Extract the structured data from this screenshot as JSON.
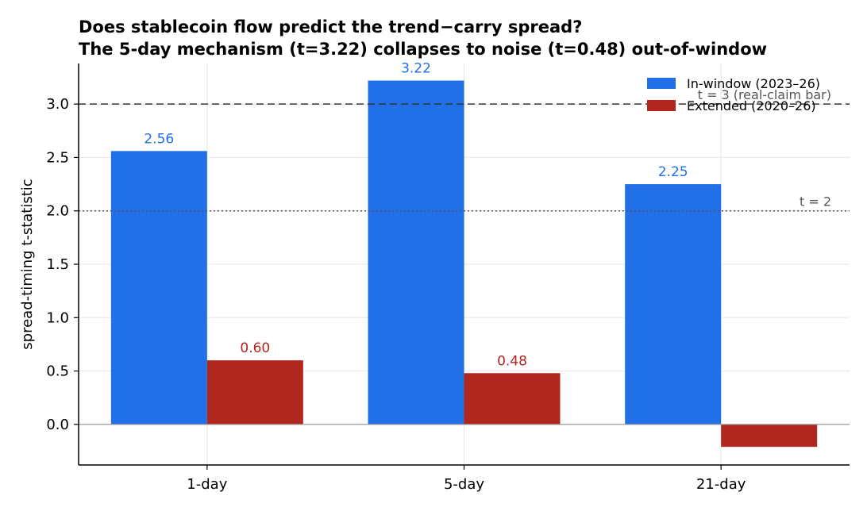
{
  "chart_data": {
    "type": "bar",
    "title": "Does stablecoin flow predict the trend−carry spread?",
    "subtitle": "The 5-day mechanism (t=3.22) collapses to noise (t=0.48) out-of-window",
    "xlabel": "",
    "ylabel": "spread-timing t-statistic",
    "categories": [
      "1-day",
      "5-day",
      "21-day"
    ],
    "series": [
      {
        "name": "In-window (2023–26)",
        "color": "#2170e8",
        "values": [
          2.56,
          3.22,
          2.25
        ],
        "labels": [
          "2.56",
          "3.22",
          "2.25"
        ]
      },
      {
        "name": "Extended (2020–26)",
        "color": "#b22620",
        "values": [
          0.6,
          0.48,
          -0.21
        ],
        "labels": [
          "0.60",
          "0.48",
          ""
        ]
      }
    ],
    "ylim": [
      -0.38,
      3.38
    ],
    "yticks": [
      0.0,
      0.5,
      1.0,
      1.5,
      2.0,
      2.5,
      3.0
    ],
    "ytick_labels": [
      "0.0",
      "0.5",
      "1.0",
      "1.5",
      "2.0",
      "2.5",
      "3.0"
    ],
    "reference_lines": [
      {
        "value": 3.0,
        "style": "dashed",
        "label": "t = 3 (real-claim bar)"
      },
      {
        "value": 2.0,
        "style": "dotted",
        "label": "t = 2"
      }
    ],
    "grid": true,
    "legend_position": "top-right"
  }
}
